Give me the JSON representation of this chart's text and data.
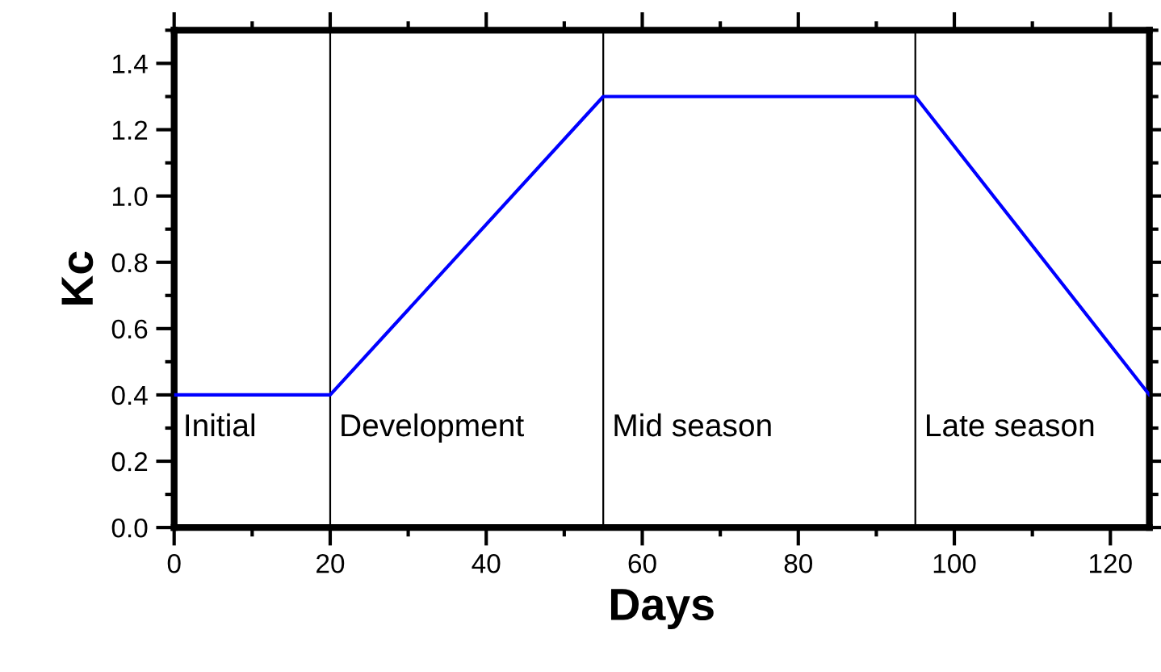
{
  "chart_data": {
    "type": "line",
    "xlabel": "Days",
    "ylabel": "Kc",
    "x": [
      0,
      20,
      55,
      95,
      125
    ],
    "series": [
      {
        "color": "#0000ff",
        "values": [
          0.4,
          0.4,
          1.3,
          1.3,
          0.4
        ]
      }
    ],
    "xlim": [
      0,
      125
    ],
    "xticks": [
      0,
      20,
      40,
      60,
      80,
      100,
      120
    ],
    "ylim": [
      0,
      1.5
    ],
    "yticks": [
      {
        "value": 0,
        "label": "0.0"
      },
      0.2,
      0.4,
      0.6,
      0.8,
      {
        "value": 1,
        "label": "1.0"
      },
      1.2,
      1.4
    ],
    "ref_lines": [
      {
        "axis": "x",
        "value": 20,
        "color": "#000000"
      },
      {
        "axis": "x",
        "value": 55,
        "color": "#000000"
      },
      {
        "axis": "x",
        "value": 95,
        "color": "#000000"
      }
    ],
    "annotations": [
      "Initial",
      "Development",
      "Mid season",
      "Late season"
    ],
    "grid": false,
    "legend": false,
    "marker": "none",
    "line_style": "solid"
  }
}
